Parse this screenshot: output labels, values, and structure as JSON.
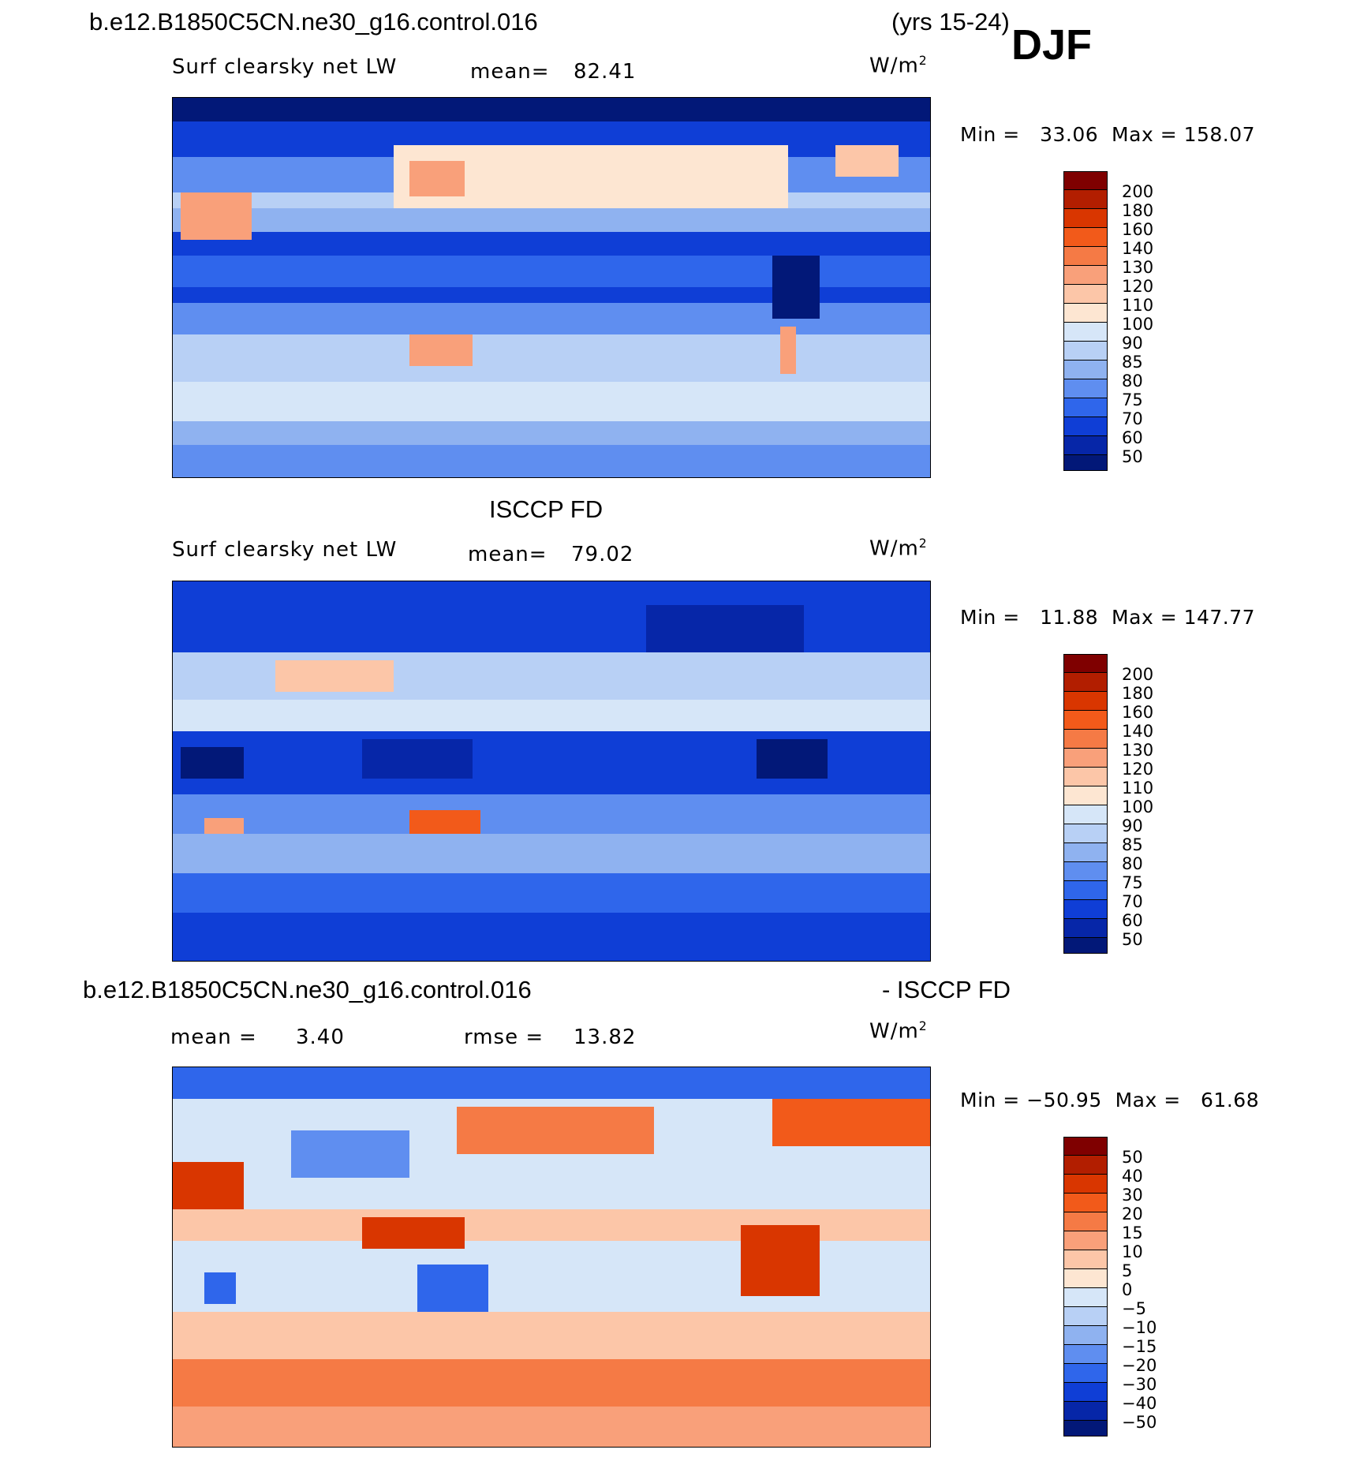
{
  "header": {
    "case": "b.e12.B1850C5CN.ne30_g16.control.016",
    "years": "(yrs 15-24)",
    "season": "DJF"
  },
  "panels": [
    {
      "variable": "Surf clearsky net LW",
      "mean_label": "mean=",
      "mean_value": "82.41",
      "units": "W/m",
      "units_sup": "2",
      "minmax": "Min =   33.06  Max = 158.07",
      "colorbar_labels": [
        "200",
        "180",
        "160",
        "140",
        "130",
        "120",
        "110",
        "100",
        "90",
        "85",
        "80",
        "75",
        "70",
        "60",
        "50"
      ]
    },
    {
      "title": "ISCCP FD",
      "variable": "Surf clearsky net LW",
      "mean_label": "mean=",
      "mean_value": "79.02",
      "units": "W/m",
      "units_sup": "2",
      "minmax": "Min =   11.88  Max = 147.77",
      "colorbar_labels": [
        "200",
        "180",
        "160",
        "140",
        "130",
        "120",
        "110",
        "100",
        "90",
        "85",
        "80",
        "75",
        "70",
        "60",
        "50"
      ]
    },
    {
      "title_left": "b.e12.B1850C5CN.ne30_g16.control.016",
      "title_right": "- ISCCP FD",
      "mean_label": "mean =",
      "mean_value": "3.40",
      "rmse_label": "rmse =",
      "rmse_value": "13.82",
      "units": "W/m",
      "units_sup": "2",
      "minmax": "Min = −50.95  Max =   61.68",
      "colorbar_labels": [
        "50",
        "40",
        "30",
        "20",
        "15",
        "10",
        "5",
        "0",
        "−5",
        "−10",
        "−15",
        "−20",
        "−30",
        "−40",
        "−50"
      ]
    }
  ],
  "colors": {
    "scale": [
      "#7f0000",
      "#b21e00",
      "#d93600",
      "#f25a1a",
      "#f57a45",
      "#f9a07a",
      "#fcc6a8",
      "#fde6d2",
      "#d6e6f8",
      "#b8d0f5",
      "#8fb2f0",
      "#5f8ef0",
      "#2f66eb",
      "#0f3ed6",
      "#0626a8",
      "#021878"
    ]
  }
}
